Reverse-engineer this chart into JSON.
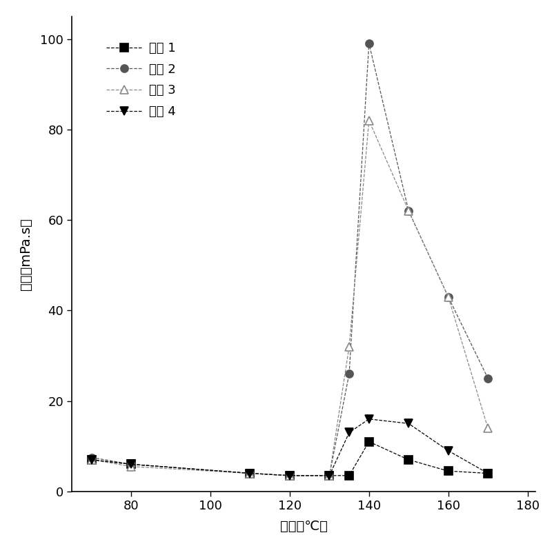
{
  "series": [
    {
      "label": "实例 1",
      "marker": "s",
      "color": "#000000",
      "fillstyle": "full",
      "x": [
        70,
        80,
        110,
        120,
        130,
        135,
        140,
        150,
        160,
        170
      ],
      "y": [
        7.0,
        6.0,
        4.0,
        3.5,
        3.5,
        3.5,
        11.0,
        7.0,
        4.5,
        4.0
      ]
    },
    {
      "label": "实例 2",
      "marker": "o",
      "color": "#555555",
      "fillstyle": "full",
      "x": [
        70,
        80,
        110,
        120,
        130,
        135,
        140,
        150,
        160,
        170
      ],
      "y": [
        7.5,
        6.0,
        4.0,
        3.5,
        3.5,
        26.0,
        99.0,
        62.0,
        43.0,
        25.0
      ]
    },
    {
      "label": "实例 3",
      "marker": "^",
      "color": "#888888",
      "fillstyle": "none",
      "x": [
        70,
        80,
        110,
        120,
        130,
        135,
        140,
        150,
        160,
        170
      ],
      "y": [
        7.0,
        5.5,
        4.0,
        3.5,
        3.5,
        32.0,
        82.0,
        62.0,
        43.0,
        14.0
      ]
    },
    {
      "label": "实例 4",
      "marker": "v",
      "color": "#000000",
      "fillstyle": "full",
      "x": [
        70,
        80,
        110,
        120,
        130,
        135,
        140,
        150,
        160,
        170
      ],
      "y": [
        7.0,
        6.0,
        4.0,
        3.5,
        3.5,
        13.0,
        16.0,
        15.0,
        9.0,
        4.0
      ]
    }
  ],
  "xlabel": "温度（℃）",
  "ylabel": "粘度（mPa.s）",
  "ylabel_top": "mPa.s",
  "xlim": [
    65,
    182
  ],
  "ylim": [
    0,
    105
  ],
  "xticks": [
    80,
    100,
    120,
    140,
    160,
    180
  ],
  "yticks": [
    0,
    20,
    40,
    60,
    80,
    100
  ],
  "legend_loc": "upper left",
  "line_style": "--",
  "line_width": 0.9,
  "marker_size": 8,
  "background_color": "#ffffff",
  "axis_fontsize": 14,
  "tick_fontsize": 13,
  "legend_fontsize": 13
}
